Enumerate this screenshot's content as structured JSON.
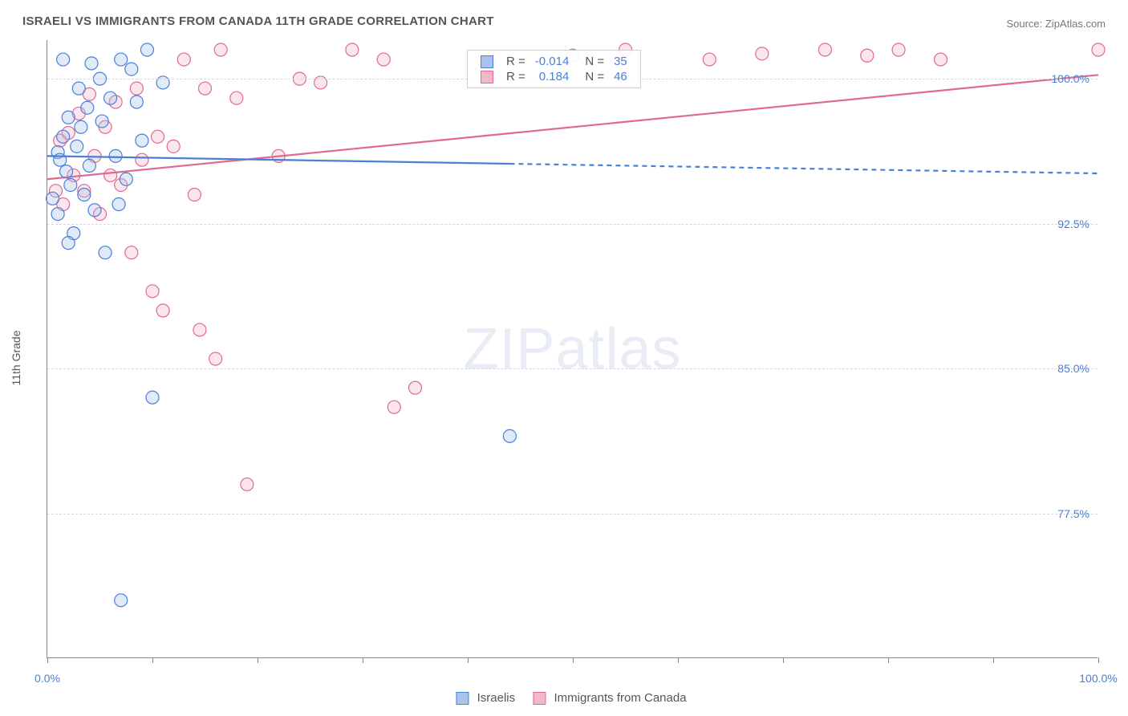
{
  "title": "ISRAELI VS IMMIGRANTS FROM CANADA 11TH GRADE CORRELATION CHART",
  "source": "Source: ZipAtlas.com",
  "y_axis_title": "11th Grade",
  "watermark": "ZIPatlas",
  "chart": {
    "type": "scatter",
    "xlim": [
      0,
      100
    ],
    "ylim": [
      70,
      102
    ],
    "y_ticks": [
      77.5,
      85.0,
      92.5,
      100.0
    ],
    "y_tick_labels": [
      "77.5%",
      "85.0%",
      "92.5%",
      "100.0%"
    ],
    "x_ticks": [
      0,
      10,
      20,
      30,
      40,
      50,
      60,
      70,
      80,
      90,
      100
    ],
    "x_tick_labels_shown": {
      "0": "0.0%",
      "100": "100.0%"
    },
    "background_color": "#ffffff",
    "grid_color": "#d8d8d8",
    "axis_color": "#888888",
    "marker_radius": 8,
    "marker_stroke_width": 1.2,
    "marker_fill_opacity": 0.35,
    "line_width": 2.2,
    "dash_pattern": "6,5"
  },
  "series": {
    "israelis": {
      "label": "Israelis",
      "color_stroke": "#4a7fd8",
      "color_fill": "#a8c4ec",
      "R": "-0.014",
      "N": "35",
      "points": [
        [
          0.5,
          93.8
        ],
        [
          1.0,
          96.2
        ],
        [
          1.0,
          93.0
        ],
        [
          1.2,
          95.8
        ],
        [
          1.5,
          97.0
        ],
        [
          1.8,
          95.2
        ],
        [
          2.0,
          98.0
        ],
        [
          2.2,
          94.5
        ],
        [
          2.5,
          92.0
        ],
        [
          2.8,
          96.5
        ],
        [
          3.0,
          99.5
        ],
        [
          3.2,
          97.5
        ],
        [
          3.5,
          94.0
        ],
        [
          3.8,
          98.5
        ],
        [
          4.0,
          95.5
        ],
        [
          4.5,
          93.2
        ],
        [
          5.0,
          100.0
        ],
        [
          5.2,
          97.8
        ],
        [
          5.5,
          91.0
        ],
        [
          6.0,
          99.0
        ],
        [
          6.5,
          96.0
        ],
        [
          7.0,
          101.0
        ],
        [
          7.5,
          94.8
        ],
        [
          8.0,
          100.5
        ],
        [
          8.5,
          98.8
        ],
        [
          9.0,
          96.8
        ],
        [
          9.5,
          101.5
        ],
        [
          10.0,
          83.5
        ],
        [
          11.0,
          99.8
        ],
        [
          7.0,
          73.0
        ],
        [
          44.0,
          81.5
        ],
        [
          1.5,
          101.0
        ],
        [
          4.2,
          100.8
        ],
        [
          6.8,
          93.5
        ],
        [
          2.0,
          91.5
        ]
      ],
      "regression_line": {
        "x1": 0,
        "y1": 96.0,
        "x2": 44,
        "y2": 95.6
      },
      "regression_extrapolate": {
        "x1": 44,
        "y1": 95.6,
        "x2": 100,
        "y2": 95.1
      }
    },
    "canada": {
      "label": "Immigrants from Canada",
      "color_stroke": "#e06a8f",
      "color_fill": "#f4b8cb",
      "R": "0.184",
      "N": "46",
      "points": [
        [
          0.8,
          94.2
        ],
        [
          1.2,
          96.8
        ],
        [
          1.5,
          93.5
        ],
        [
          2.0,
          97.2
        ],
        [
          2.5,
          95.0
        ],
        [
          3.0,
          98.2
        ],
        [
          3.5,
          94.2
        ],
        [
          4.0,
          99.2
        ],
        [
          4.5,
          96.0
        ],
        [
          5.0,
          93.0
        ],
        [
          5.5,
          97.5
        ],
        [
          6.0,
          95.0
        ],
        [
          6.5,
          98.8
        ],
        [
          7.0,
          94.5
        ],
        [
          8.0,
          91.0
        ],
        [
          8.5,
          99.5
        ],
        [
          9.0,
          95.8
        ],
        [
          10.0,
          89.0
        ],
        [
          10.5,
          97.0
        ],
        [
          11.0,
          88.0
        ],
        [
          12.0,
          96.5
        ],
        [
          13.0,
          101.0
        ],
        [
          14.0,
          94.0
        ],
        [
          14.5,
          87.0
        ],
        [
          15.0,
          99.5
        ],
        [
          16.0,
          85.5
        ],
        [
          16.5,
          101.5
        ],
        [
          18.0,
          99.0
        ],
        [
          19.0,
          79.0
        ],
        [
          22.0,
          96.0
        ],
        [
          24.0,
          100.0
        ],
        [
          26.0,
          99.8
        ],
        [
          29.0,
          101.5
        ],
        [
          32.0,
          101.0
        ],
        [
          33.0,
          83.0
        ],
        [
          35.0,
          84.0
        ],
        [
          42.0,
          101.0
        ],
        [
          50.0,
          101.2
        ],
        [
          55.0,
          101.5
        ],
        [
          63.0,
          101.0
        ],
        [
          68.0,
          101.3
        ],
        [
          74.0,
          101.5
        ],
        [
          78.0,
          101.2
        ],
        [
          81.0,
          101.5
        ],
        [
          85.0,
          101.0
        ],
        [
          100.0,
          101.5
        ]
      ],
      "regression_line": {
        "x1": 0,
        "y1": 94.8,
        "x2": 100,
        "y2": 100.2
      }
    }
  },
  "legend_top": {
    "R_label": "R =",
    "N_label": "N ="
  }
}
